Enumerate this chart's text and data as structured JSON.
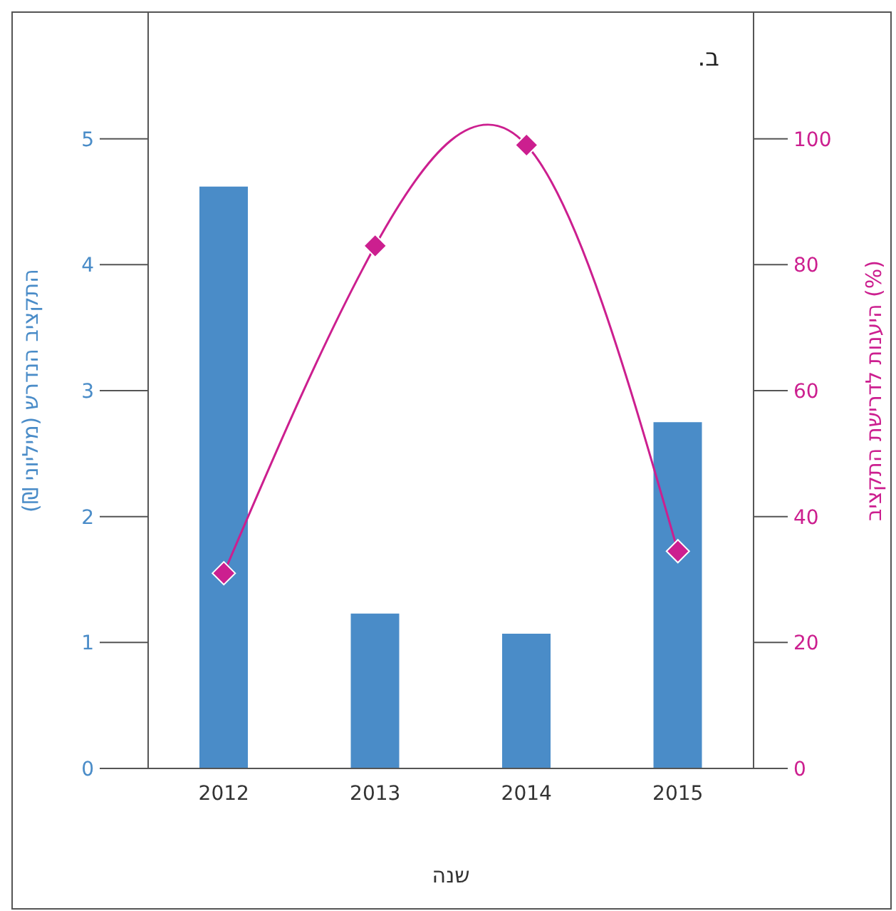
{
  "chart_data": {
    "type": "bar",
    "title": "ב.",
    "xlabel": "שנה",
    "ylabel": "התקציב הנדרש (מיליוני ₪)",
    "y2label": "היענות לדרישת התקציב (%)",
    "categories": [
      "2012",
      "2013",
      "2014",
      "2015"
    ],
    "series": [
      {
        "color": "#4a8cc8",
        "values": [
          4.62,
          1.23,
          1.07,
          2.75
        ]
      },
      {
        "type": "line",
        "axis": "y2",
        "color": "#cc1f8f",
        "marker": "diamond",
        "values": [
          31,
          83,
          99,
          34.5
        ]
      }
    ],
    "ylim": [
      0,
      6
    ],
    "yticks": [
      0,
      1,
      2,
      3,
      4,
      5
    ],
    "y2lim": [
      0,
      120
    ],
    "y2ticks": [
      0,
      20,
      40,
      60,
      80,
      100
    ],
    "grid": false,
    "legend": false
  }
}
